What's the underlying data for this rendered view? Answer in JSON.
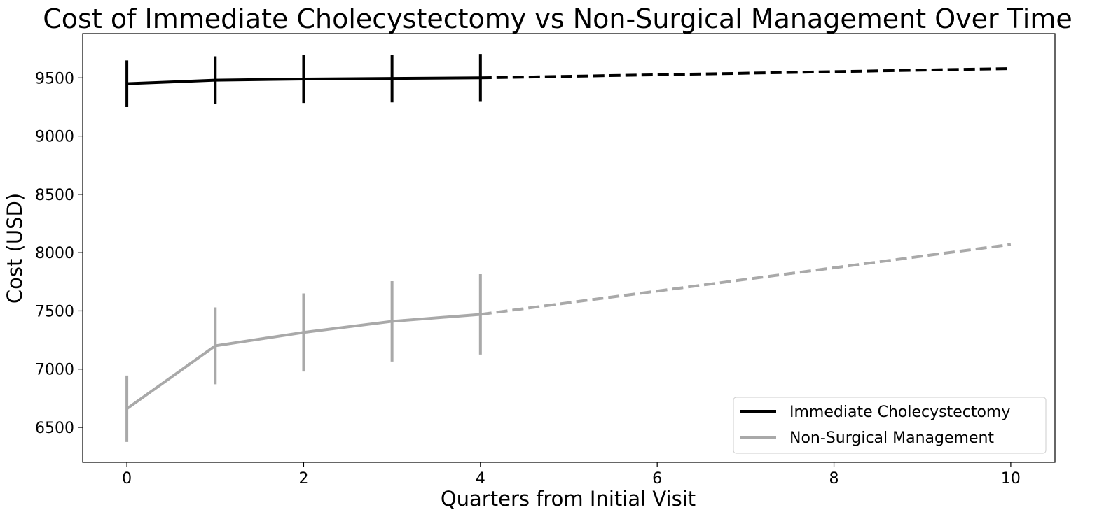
{
  "chart_data": {
    "type": "line",
    "title": "Cost of Immediate Cholecystectomy vs Non-Surgical Management Over Time",
    "xlabel": "Quarters from Initial Visit",
    "ylabel": "Cost (USD)",
    "xlim": [
      -0.5,
      10.5
    ],
    "ylim": [
      6200,
      9880
    ],
    "xticks": [
      0,
      2,
      4,
      6,
      8,
      10
    ],
    "yticks": [
      6500,
      7000,
      7500,
      8000,
      8500,
      9000,
      9500
    ],
    "grid": false,
    "legend_position": "lower-right",
    "series": [
      {
        "name": "Immediate Cholecystectomy",
        "color": "#000000",
        "observed": {
          "x": [
            0,
            1,
            2,
            3,
            4
          ],
          "y": [
            9450,
            9480,
            9490,
            9495,
            9500
          ],
          "error": [
            200,
            205,
            205,
            205,
            205
          ]
        },
        "projected": {
          "x": [
            4,
            10
          ],
          "y": [
            9500,
            9580
          ]
        }
      },
      {
        "name": "Non-Surgical Management",
        "color": "#a9a9a9",
        "observed": {
          "x": [
            0,
            1,
            2,
            3,
            4
          ],
          "y": [
            6660,
            7200,
            7315,
            7410,
            7470
          ],
          "error": [
            285,
            330,
            335,
            345,
            345
          ]
        },
        "projected": {
          "x": [
            4,
            10
          ],
          "y": [
            7470,
            8070
          ]
        }
      }
    ]
  }
}
